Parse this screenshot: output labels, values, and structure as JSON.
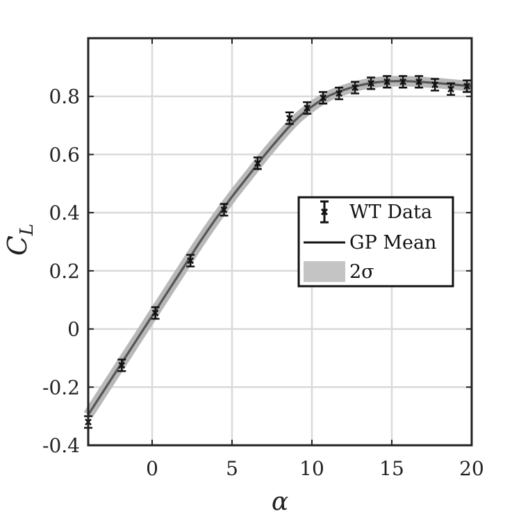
{
  "chart_data": {
    "type": "line",
    "title": "",
    "xlabel": "α",
    "ylabel": "C",
    "ylabel_subscript": "L",
    "xlim": [
      -4,
      20
    ],
    "ylim": [
      -0.4,
      1.0
    ],
    "xticks": [
      0,
      5,
      10,
      15,
      20
    ],
    "xtick_labels": [
      "0",
      "5",
      "10",
      "15",
      "20"
    ],
    "yticks": [
      -0.4,
      -0.2,
      0,
      0.2,
      0.4,
      0.6,
      0.8
    ],
    "ytick_labels": [
      "-0.4",
      "-0.2",
      "0",
      "0.2",
      "0.4",
      "0.6",
      "0.8"
    ],
    "grid": true,
    "legend_position": "right",
    "legend": [
      {
        "label": "WT Data",
        "marker": "errorbar-x"
      },
      {
        "label": "GP Mean",
        "marker": "line"
      },
      {
        "label": "2σ",
        "marker": "band"
      }
    ],
    "series": [
      {
        "name": "WT Data",
        "kind": "errorbar",
        "x": [
          -4,
          -1.9,
          0.2,
          2.4,
          4.5,
          6.6,
          8.6,
          9.7,
          10.7,
          11.7,
          12.7,
          13.7,
          14.7,
          15.7,
          16.7,
          17.7,
          18.7,
          19.7
        ],
        "y": [
          -0.32,
          -0.125,
          0.055,
          0.235,
          0.41,
          0.57,
          0.725,
          0.76,
          0.795,
          0.81,
          0.83,
          0.845,
          0.85,
          0.85,
          0.85,
          0.84,
          0.825,
          0.835
        ],
        "error": [
          0.02,
          0.02,
          0.02,
          0.02,
          0.02,
          0.02,
          0.02,
          0.02,
          0.02,
          0.02,
          0.02,
          0.02,
          0.02,
          0.02,
          0.02,
          0.02,
          0.02,
          0.02
        ]
      },
      {
        "name": "GP Mean",
        "kind": "line",
        "x": [
          -4,
          -3,
          -2,
          -1,
          0,
          1,
          2,
          3,
          4,
          5,
          6,
          7,
          8,
          9,
          10,
          11,
          12,
          13,
          14,
          15,
          16,
          17,
          18,
          19,
          20
        ],
        "y": [
          -0.295,
          -0.21,
          -0.125,
          -0.04,
          0.045,
          0.13,
          0.215,
          0.3,
          0.38,
          0.455,
          0.525,
          0.595,
          0.66,
          0.72,
          0.765,
          0.8,
          0.822,
          0.838,
          0.848,
          0.852,
          0.852,
          0.849,
          0.845,
          0.84,
          0.835
        ]
      },
      {
        "name": "2σ",
        "kind": "band",
        "halfwidth": 0.018
      }
    ],
    "colors": {
      "band": "#b8b8b8",
      "mean_line": "#555555",
      "marker": "#111111",
      "legend_line": "#111111",
      "grid": "#d9d9d9",
      "axes": "#222222"
    }
  }
}
